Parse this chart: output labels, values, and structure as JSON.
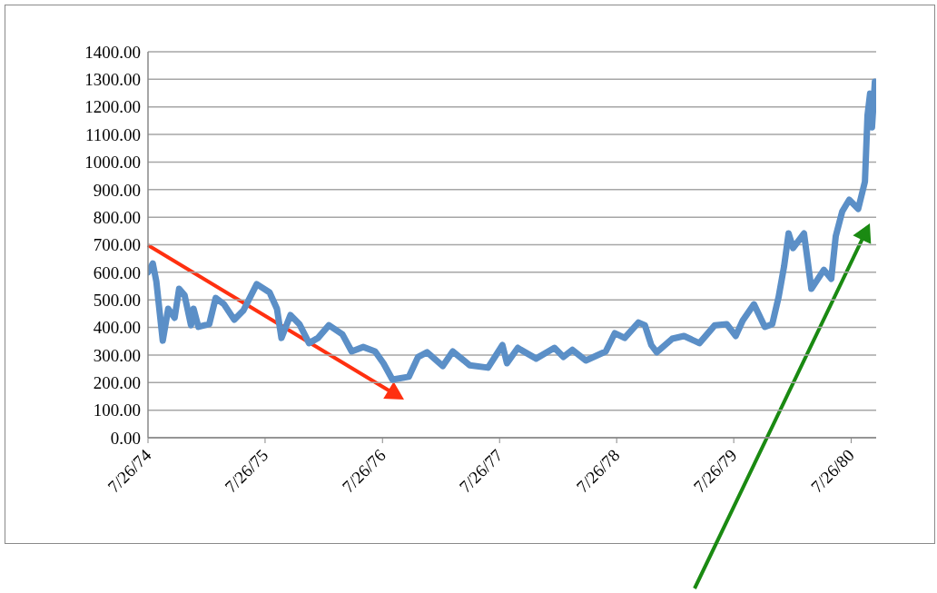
{
  "chart_data": {
    "type": "line",
    "x": [
      "1974-07-26",
      "1974-08-10",
      "1974-08-21",
      "1974-09-10",
      "1974-09-27",
      "1974-10-17",
      "1974-10-31",
      "1974-11-17",
      "1974-12-07",
      "1974-12-15",
      "1974-12-30",
      "1975-02-02",
      "1975-02-22",
      "1975-03-20",
      "1975-04-21",
      "1975-05-19",
      "1975-06-30",
      "1975-08-09",
      "1975-09-01",
      "1975-09-15",
      "1975-10-13",
      "1975-11-10",
      "1975-12-10",
      "1976-01-07",
      "1976-02-10",
      "1976-03-23",
      "1976-04-21",
      "1976-05-27",
      "1976-07-03",
      "1976-07-29",
      "1976-08-26",
      "1976-10-16",
      "1976-11-14",
      "1976-12-12",
      "1977-01-30",
      "1977-03-02",
      "1977-04-24",
      "1977-06-20",
      "1977-08-04",
      "1977-08-18",
      "1977-09-21",
      "1977-09-30",
      "1977-11-17",
      "1978-01-13",
      "1978-02-10",
      "1978-03-10",
      "1978-04-21",
      "1978-06-22",
      "1978-07-20",
      "1978-08-20",
      "1978-10-02",
      "1978-10-22",
      "1978-11-11",
      "1978-11-28",
      "1979-01-15",
      "1979-02-21",
      "1979-04-10",
      "1979-05-28",
      "1979-07-04",
      "1979-08-01",
      "1979-08-23",
      "1979-09-27",
      "1979-10-31",
      "1979-11-23",
      "1979-12-13",
      "1979-12-30",
      "1980-01-13",
      "1980-01-27",
      "1980-03-01",
      "1980-03-24",
      "1980-05-02",
      "1980-05-25",
      "1980-06-08",
      "1980-06-28",
      "1980-07-20",
      "1980-08-17",
      "1980-09-07",
      "1980-09-15",
      "1980-09-23",
      "1980-09-29",
      "1980-10-08"
    ],
    "series": [
      {
        "color": "#5b8fc7",
        "values": [
          600,
          632,
          567,
          352,
          468,
          435,
          540,
          517,
          408,
          468,
          402,
          412,
          507,
          484,
          428,
          461,
          557,
          527,
          468,
          362,
          445,
          412,
          343,
          362,
          408,
          375,
          313,
          329,
          313,
          270,
          211,
          221,
          293,
          310,
          260,
          313,
          263,
          254,
          336,
          270,
          326,
          319,
          287,
          326,
          293,
          319,
          280,
          313,
          379,
          362,
          418,
          408,
          336,
          310,
          359,
          369,
          343,
          408,
          412,
          369,
          425,
          484,
          402,
          412,
          511,
          622,
          741,
          688,
          741,
          540,
          609,
          576,
          731,
          820,
          863,
          830,
          929,
          1169,
          1248,
          1126,
          1291
        ]
      }
    ],
    "xlim": [
      "1974-07-26",
      "1980-10-12"
    ],
    "xticks": [
      {
        "value": "1974-07-26",
        "label": "7/26/74"
      },
      {
        "value": "1975-07-26",
        "label": "7/26/75"
      },
      {
        "value": "1976-07-26",
        "label": "7/26/76"
      },
      {
        "value": "1977-07-26",
        "label": "7/26/77"
      },
      {
        "value": "1978-07-26",
        "label": "7/26/78"
      },
      {
        "value": "1979-07-26",
        "label": "7/26/79"
      },
      {
        "value": "1980-07-26",
        "label": "7/26/80"
      }
    ],
    "ylim": [
      0,
      1400
    ],
    "yticks": [
      {
        "value": 0,
        "label": "0.00"
      },
      {
        "value": 100,
        "label": "100.00"
      },
      {
        "value": 200,
        "label": "200.00"
      },
      {
        "value": 300,
        "label": "300.00"
      },
      {
        "value": 400,
        "label": "400.00"
      },
      {
        "value": 500,
        "label": "500.00"
      },
      {
        "value": 600,
        "label": "600.00"
      },
      {
        "value": 700,
        "label": "700.00"
      },
      {
        "value": 800,
        "label": "800.00"
      },
      {
        "value": 900,
        "label": "900.00"
      },
      {
        "value": 1000,
        "label": "1000.00"
      },
      {
        "value": 1100,
        "label": "1100.00"
      },
      {
        "value": 1200,
        "label": "1200.00"
      },
      {
        "value": 1300,
        "label": "1300.00"
      },
      {
        "value": 1400,
        "label": "1400.00"
      }
    ],
    "grid": "y"
  }
}
